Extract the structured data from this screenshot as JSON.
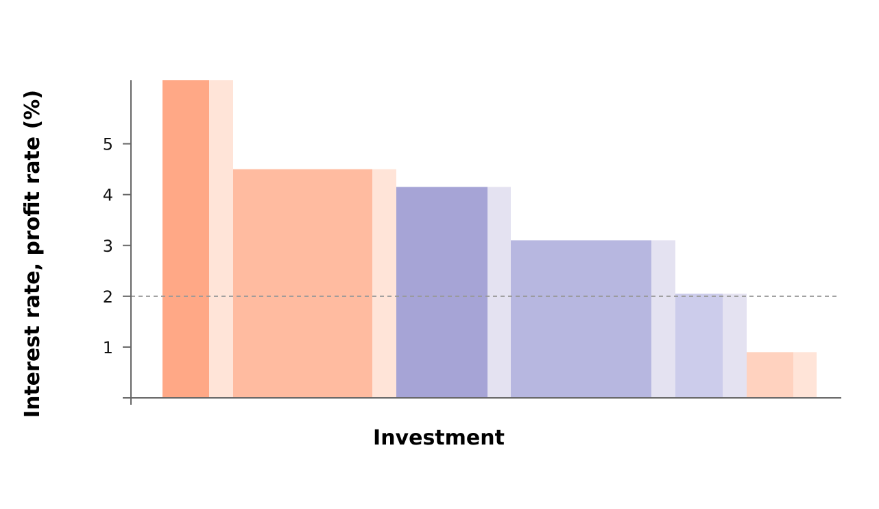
{
  "chart_data": {
    "type": "bar",
    "title": "",
    "xlabel": "Investment",
    "ylabel": "Interest rate, profit rate (%)",
    "ylim": [
      0,
      6.25
    ],
    "yticks": [
      1,
      2,
      3,
      4,
      5
    ],
    "x_tick_labels": false,
    "grid": false,
    "reference_line": {
      "y": 2,
      "style": "dashed",
      "color": "#999999"
    },
    "bars": [
      {
        "value": 6.25,
        "color": "#ffa886",
        "margin_color": "#ffe4d8"
      },
      {
        "value": 4.5,
        "color": "#ffbba0",
        "margin_color": "#ffe4d8"
      },
      {
        "value": 4.15,
        "color": "#a6a4d6",
        "margin_color": "#e4e2f1"
      },
      {
        "value": 3.1,
        "color": "#b7b7e0",
        "margin_color": "#e4e2f1"
      },
      {
        "value": 2.05,
        "color": "#cccceb",
        "margin_color": "#e4e2f1"
      },
      {
        "value": 0.9,
        "color": "#ffd2bf",
        "margin_color": "#ffe4d8"
      }
    ]
  }
}
